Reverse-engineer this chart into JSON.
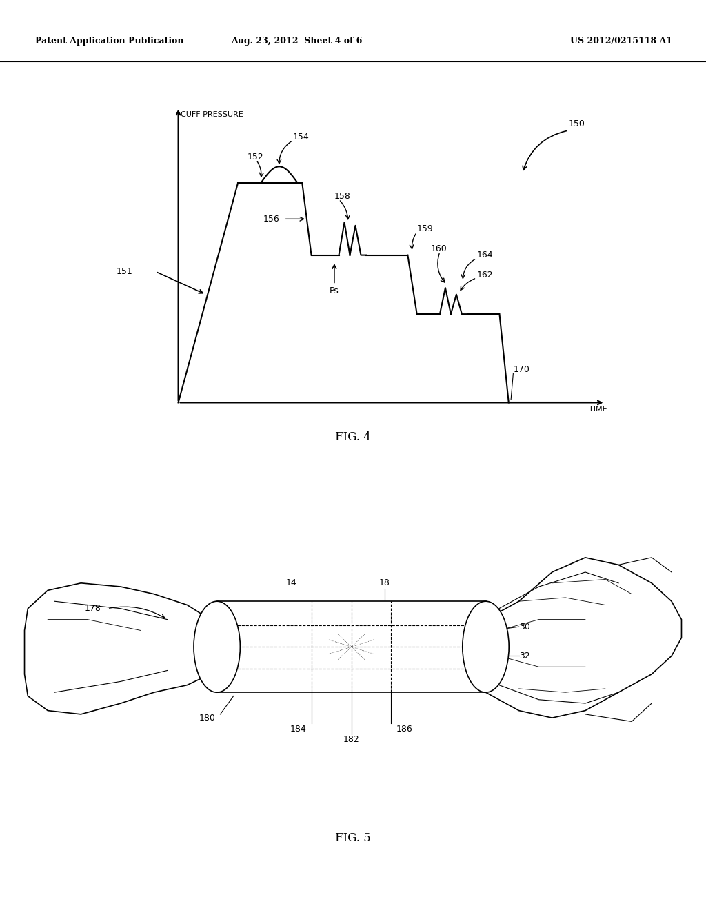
{
  "bg_color": "#ffffff",
  "header_left": "Patent Application Publication",
  "header_center": "Aug. 23, 2012  Sheet 4 of 6",
  "header_right": "US 2012/0215118 A1",
  "fig4_label": "FIG. 4",
  "fig5_label": "FIG. 5",
  "cuff_pressure_label": "CUFF PRESSURE",
  "time_label": "TIME",
  "label_150": "150",
  "label_151": "151",
  "label_152": "152",
  "label_154": "154",
  "label_156": "156",
  "label_158": "158",
  "label_159": "159",
  "label_160": "160",
  "label_162": "162",
  "label_164": "164",
  "label_170": "170",
  "label_Ps": "Ps",
  "label_14": "14",
  "label_18": "18",
  "label_30": "30",
  "label_32": "32",
  "label_178": "178",
  "label_180": "180",
  "label_182": "182",
  "label_184": "184",
  "label_186": "186"
}
